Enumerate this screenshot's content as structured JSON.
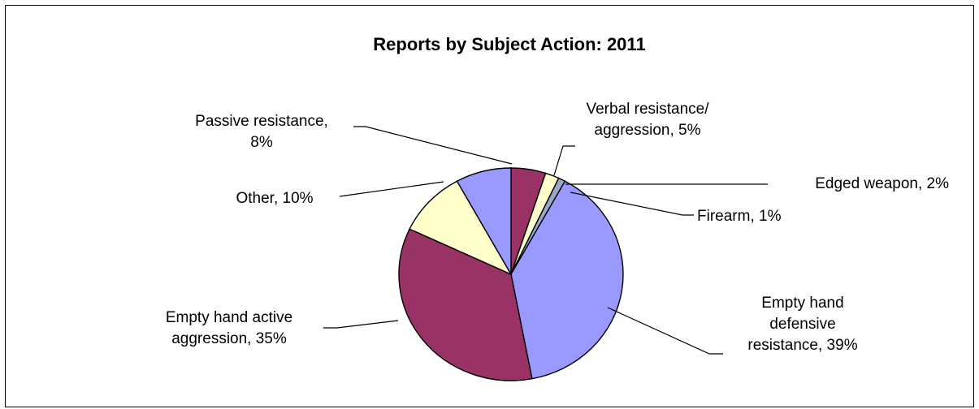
{
  "chart_data": {
    "type": "pie",
    "title": "Reports by Subject Action: 2011",
    "slices": [
      {
        "label_lines": [
          "Verbal resistance/",
          "aggression, 5%"
        ],
        "value": 5,
        "color": "#993366"
      },
      {
        "label_lines": [
          "Edged weapon, 2%"
        ],
        "value": 2,
        "color": "#FFFFCC"
      },
      {
        "label_lines": [
          "Firearm, 1%"
        ],
        "value": 1,
        "color": "#99A8C8"
      },
      {
        "label_lines": [
          "Empty hand",
          "defensive",
          "resistance, 39%"
        ],
        "value": 39,
        "color": "#9999FF"
      },
      {
        "label_lines": [
          "Empty hand active",
          "aggression, 35%"
        ],
        "value": 35,
        "color": "#993366"
      },
      {
        "label_lines": [
          "Other, 10%"
        ],
        "value": 10,
        "color": "#FFFFCC"
      },
      {
        "label_lines": [
          "Passive resistance,",
          "8%"
        ],
        "value": 8,
        "color": "#9999FF"
      }
    ],
    "legend": "none"
  }
}
